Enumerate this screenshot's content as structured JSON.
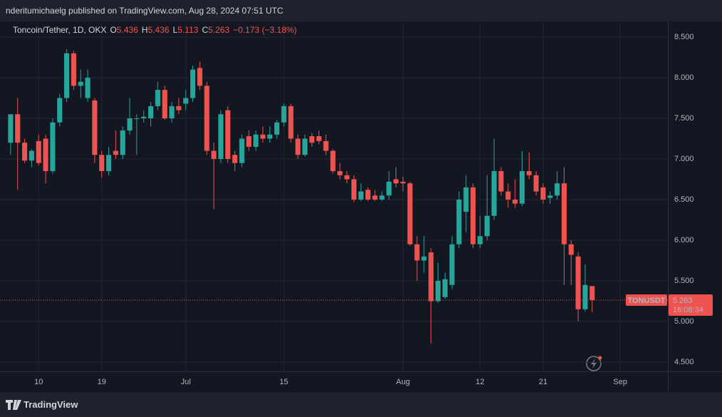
{
  "header": "nderitumichaelg published on TradingView.com, Aug 28, 2024 07:51 UTC",
  "footer": "TradingView",
  "chart_data": {
    "type": "candlestick",
    "title": "Toncoin/Tether, 1D, OKX",
    "ohlc_legend": [
      {
        "key": "O",
        "value": "5.436"
      },
      {
        "key": "H",
        "value": "5.436"
      },
      {
        "key": "L",
        "value": "5.113"
      },
      {
        "key": "C",
        "value": "5.263"
      }
    ],
    "change": "−0.173 (−3.18%)",
    "last_price": {
      "symbol": "TONUSDT",
      "price": "5.263",
      "countdown": "16:08:34"
    },
    "up_color": "#26a69a",
    "down_color": "#ef5350",
    "open": [
      7.2,
      7.55,
      7.2,
      6.98,
      7.22,
      7.25,
      6.85,
      7.45,
      7.75,
      8.3,
      7.9,
      7.75,
      7.72,
      7.05,
      6.85,
      7.1,
      7.05,
      7.35,
      7.5,
      7.5,
      7.5,
      7.65,
      7.85,
      7.5,
      7.65,
      7.68,
      7.75,
      8.12,
      7.9,
      7.1,
      7.0,
      7.6,
      7.05,
      6.95,
      7.28,
      7.15,
      7.3,
      7.25,
      7.3,
      7.45,
      7.65,
      7.25,
      7.05,
      7.28,
      7.28,
      7.22,
      7.1,
      6.85,
      6.8,
      6.75,
      6.5,
      6.62,
      6.55,
      6.5,
      6.55,
      6.75,
      6.72,
      6.7,
      5.95,
      5.75,
      5.85,
      5.25,
      5.3,
      5.45,
      5.95,
      6.35,
      6.65,
      5.95,
      6.05,
      6.3,
      6.85,
      6.6,
      6.5,
      6.45,
      6.85,
      6.8,
      6.65,
      6.52,
      6.55,
      6.7,
      5.95,
      5.8,
      5.15,
      5.436
    ],
    "high": [
      7.55,
      7.75,
      7.25,
      7.12,
      7.3,
      7.3,
      7.5,
      7.8,
      8.35,
      8.33,
      8.1,
      8.1,
      7.75,
      7.1,
      7.15,
      7.35,
      7.4,
      7.75,
      7.55,
      7.6,
      7.7,
      7.95,
      7.9,
      7.7,
      7.75,
      7.85,
      8.15,
      8.2,
      7.95,
      7.2,
      7.6,
      7.65,
      7.1,
      7.3,
      7.35,
      7.35,
      7.4,
      7.4,
      7.48,
      7.68,
      7.68,
      7.3,
      7.3,
      7.32,
      7.35,
      7.3,
      7.12,
      6.95,
      6.85,
      6.8,
      6.7,
      6.65,
      6.62,
      6.6,
      6.85,
      6.9,
      6.78,
      6.72,
      6.05,
      6.05,
      5.9,
      5.72,
      5.6,
      6.05,
      6.6,
      6.8,
      6.7,
      6.3,
      6.8,
      7.25,
      6.9,
      6.7,
      6.75,
      7.1,
      7.08,
      6.85,
      6.7,
      6.6,
      6.85,
      6.9,
      6.0,
      5.85,
      5.7,
      5.436
    ],
    "low": [
      7.05,
      6.62,
      6.95,
      6.9,
      6.92,
      6.7,
      6.82,
      7.4,
      7.7,
      7.85,
      7.75,
      7.7,
      6.95,
      6.77,
      6.8,
      7.0,
      7.0,
      7.3,
      7.05,
      7.45,
      7.4,
      7.6,
      7.48,
      7.45,
      7.55,
      7.6,
      7.7,
      7.85,
      7.05,
      6.38,
      6.95,
      6.95,
      6.85,
      6.9,
      7.1,
      7.1,
      7.2,
      7.2,
      7.25,
      7.4,
      7.2,
      7.0,
      7.03,
      7.15,
      7.18,
      7.05,
      6.82,
      6.75,
      6.7,
      6.47,
      6.48,
      6.48,
      6.48,
      6.48,
      6.5,
      6.65,
      6.6,
      5.93,
      5.5,
      5.6,
      4.73,
      5.23,
      5.28,
      5.4,
      5.9,
      6.1,
      5.9,
      5.9,
      6.0,
      6.25,
      6.55,
      6.4,
      6.4,
      6.42,
      6.75,
      6.55,
      6.45,
      6.45,
      6.5,
      5.45,
      5.45,
      5.0,
      5.12,
      5.113
    ],
    "close": [
      7.55,
      7.2,
      6.98,
      7.1,
      6.95,
      6.85,
      7.45,
      7.75,
      8.3,
      7.9,
      7.95,
      8.0,
      7.05,
      6.85,
      7.05,
      7.05,
      7.35,
      7.5,
      7.5,
      7.52,
      7.65,
      7.85,
      7.5,
      7.65,
      7.6,
      7.75,
      8.1,
      7.9,
      7.1,
      7.0,
      7.55,
      7.0,
      6.95,
      7.25,
      7.15,
      7.3,
      7.25,
      7.3,
      7.45,
      7.65,
      7.25,
      7.05,
      7.25,
      7.2,
      7.22,
      7.1,
      6.85,
      6.8,
      6.75,
      6.5,
      6.6,
      6.5,
      6.5,
      6.55,
      6.72,
      6.7,
      6.7,
      5.95,
      5.75,
      5.8,
      5.25,
      5.5,
      5.52,
      5.95,
      6.5,
      6.65,
      5.95,
      6.05,
      6.3,
      6.85,
      6.6,
      6.5,
      6.45,
      6.85,
      6.8,
      6.6,
      6.5,
      6.55,
      6.7,
      5.95,
      5.82,
      5.15,
      5.45,
      5.263
    ],
    "xlim": [
      -0.5,
      93.8
    ],
    "xticks": [
      {
        "value": 4,
        "label": "10"
      },
      {
        "value": 13,
        "label": "19"
      },
      {
        "value": 25,
        "label": "Jul"
      },
      {
        "value": 39,
        "label": "15"
      },
      {
        "value": 56,
        "label": "Aug"
      },
      {
        "value": 67,
        "label": "12"
      },
      {
        "value": 76,
        "label": "21"
      },
      {
        "value": 87,
        "label": "Sep"
      }
    ],
    "ylim": [
      4.377,
      8.693
    ],
    "yticks": [
      {
        "value": 4.5,
        "label": "4.500"
      },
      {
        "value": 5,
        "label": "5.000"
      },
      {
        "value": 5.5,
        "label": "5.500"
      },
      {
        "value": 6,
        "label": "6.000"
      },
      {
        "value": 6.5,
        "label": "6.500"
      },
      {
        "value": 7,
        "label": "7.000"
      },
      {
        "value": 7.5,
        "label": "7.500"
      },
      {
        "value": 8,
        "label": "8.000"
      },
      {
        "value": 8.5,
        "label": "8.500"
      }
    ],
    "grid": true
  }
}
